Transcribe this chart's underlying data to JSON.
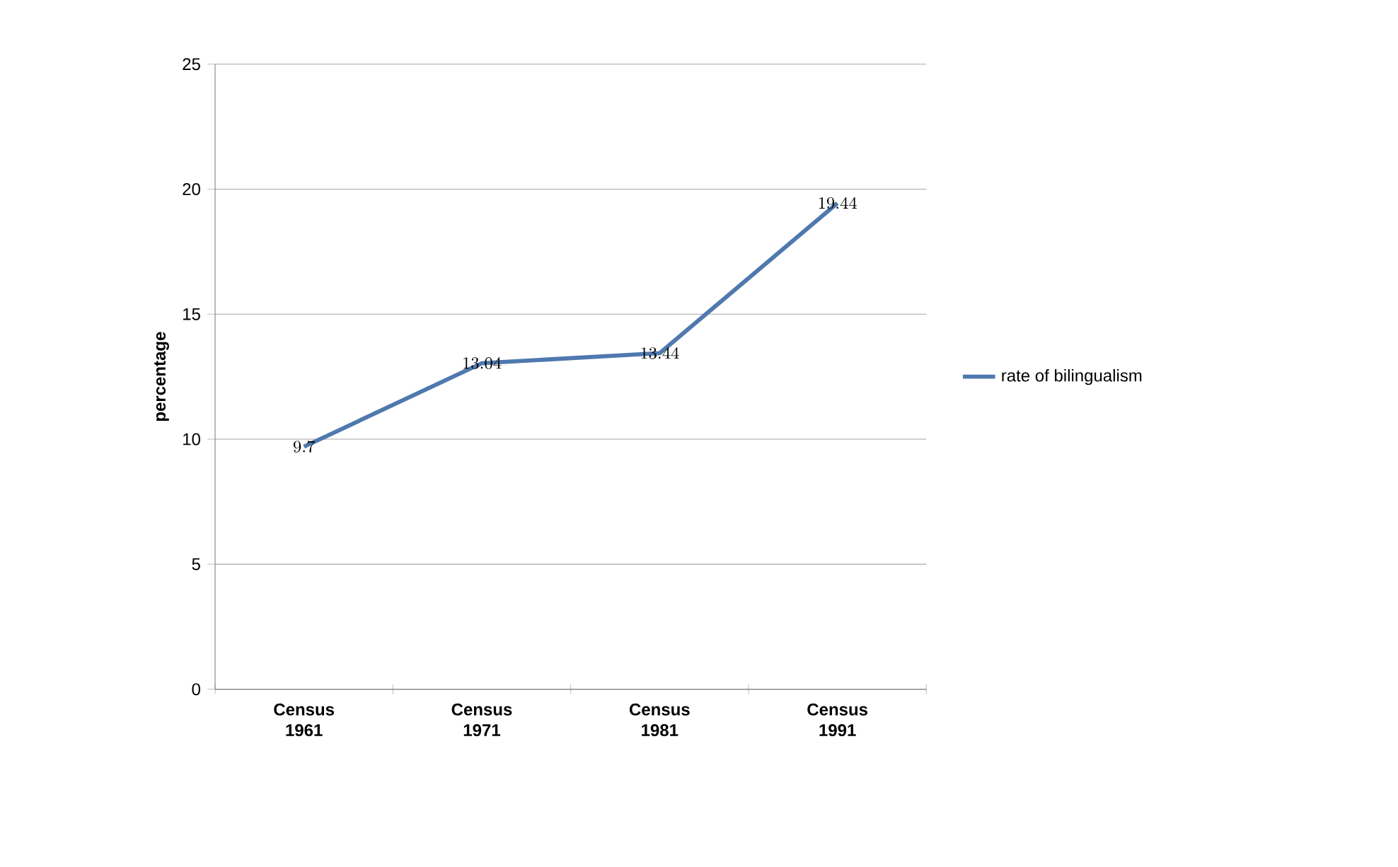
{
  "chart_data": {
    "type": "line",
    "ylabel": "percentage",
    "categories": [
      "Census 1961",
      "Census 1971",
      "Census 1981",
      "Census 1991"
    ],
    "series": [
      {
        "name": "rate of bilingualism",
        "color": "#4f79ae",
        "values": [
          9.7,
          13.04,
          13.44,
          19.44
        ]
      }
    ],
    "ylim": [
      0,
      25
    ],
    "yticks": [
      0,
      5,
      10,
      15,
      20,
      25
    ],
    "grid": "y",
    "legend": "right",
    "data_labels": true,
    "marker": "none"
  }
}
